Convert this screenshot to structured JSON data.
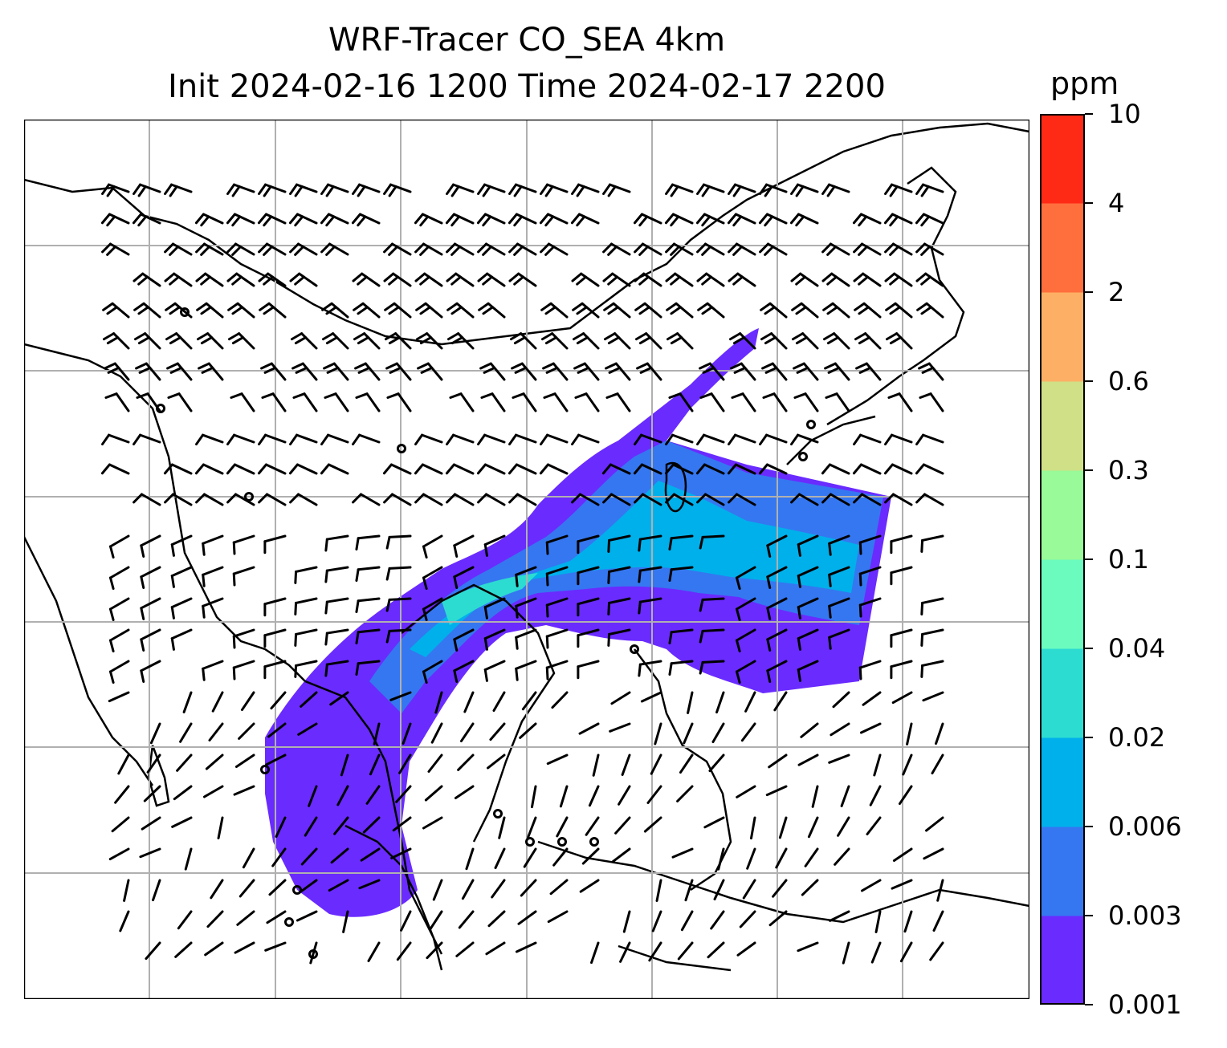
{
  "title": {
    "line1": "WRF-Tracer CO_SEA 4km",
    "line2": "Init 2024-02-16 1200 Time 2024-02-17 2200"
  },
  "colorbar": {
    "unit": "ppm",
    "levels": [
      "0.001",
      "0.003",
      "0.006",
      "0.02",
      "0.04",
      "0.1",
      "0.3",
      "0.6",
      "2",
      "4",
      "10"
    ],
    "colors": [
      "#6a2bff",
      "#3577f0",
      "#00b0eb",
      "#2ddcd1",
      "#6bfbbf",
      "#98fa98",
      "#cfe086",
      "#fdb065",
      "#ff6e3d",
      "#ff2a16"
    ]
  },
  "map": {
    "variable": "CO tracer concentration with wind barbs",
    "gridlines": true,
    "plume_colors": {
      "outer": "#6a2bff",
      "mid": "#3577f0",
      "core": "#00b0eb",
      "peak": "#2ddcd1"
    }
  }
}
